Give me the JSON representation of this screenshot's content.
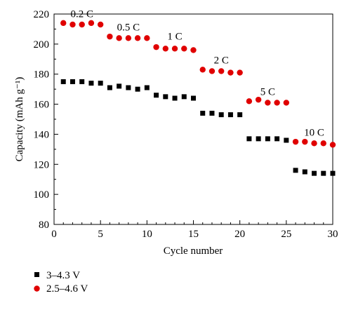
{
  "chart_data": {
    "type": "scatter",
    "title": "",
    "xlabel": "Cycle number",
    "ylabel": "Capacity (mAh g⁻¹)",
    "xlim": [
      0,
      30
    ],
    "ylim": [
      80,
      220
    ],
    "x_ticks": [
      "0",
      "5",
      "10",
      "15",
      "20",
      "25",
      "30"
    ],
    "y_ticks": [
      "80",
      "100",
      "120",
      "140",
      "160",
      "180",
      "200",
      "220"
    ],
    "grid": false,
    "legend_position": "bottom-left",
    "rate_labels": [
      {
        "text": "0.2 C",
        "x": 3,
        "y": 218
      },
      {
        "text": "0.5 C",
        "x": 8,
        "y": 209
      },
      {
        "text": "1 C",
        "x": 13,
        "y": 203
      },
      {
        "text": "2 C",
        "x": 18,
        "y": 187
      },
      {
        "text": "5 C",
        "x": 23,
        "y": 166
      },
      {
        "text": "10 C",
        "x": 28,
        "y": 139
      }
    ],
    "series": [
      {
        "name": "3–4.3 V",
        "marker": "square",
        "color": "#000000",
        "x": [
          1,
          2,
          3,
          4,
          5,
          6,
          7,
          8,
          9,
          10,
          11,
          12,
          13,
          14,
          15,
          16,
          17,
          18,
          19,
          20,
          21,
          22,
          23,
          24,
          25,
          26,
          27,
          28,
          29,
          30
        ],
        "values": [
          175,
          175,
          175,
          174,
          174,
          171,
          172,
          171,
          170,
          171,
          166,
          165,
          164,
          165,
          164,
          154,
          154,
          153,
          153,
          153,
          137,
          137,
          137,
          137,
          136,
          116,
          115,
          114,
          114,
          114
        ]
      },
      {
        "name": "2.5–4.6 V",
        "marker": "circle",
        "color": "#e00000",
        "x": [
          1,
          2,
          3,
          4,
          5,
          6,
          7,
          8,
          9,
          10,
          11,
          12,
          13,
          14,
          15,
          16,
          17,
          18,
          19,
          20,
          21,
          22,
          23,
          24,
          25,
          26,
          27,
          28,
          29,
          30
        ],
        "values": [
          214,
          213,
          213,
          214,
          213,
          205,
          204,
          204,
          204,
          204,
          198,
          197,
          197,
          197,
          196,
          183,
          182,
          182,
          181,
          181,
          162,
          163,
          161,
          161,
          161,
          135,
          135,
          134,
          134,
          133
        ]
      }
    ]
  }
}
